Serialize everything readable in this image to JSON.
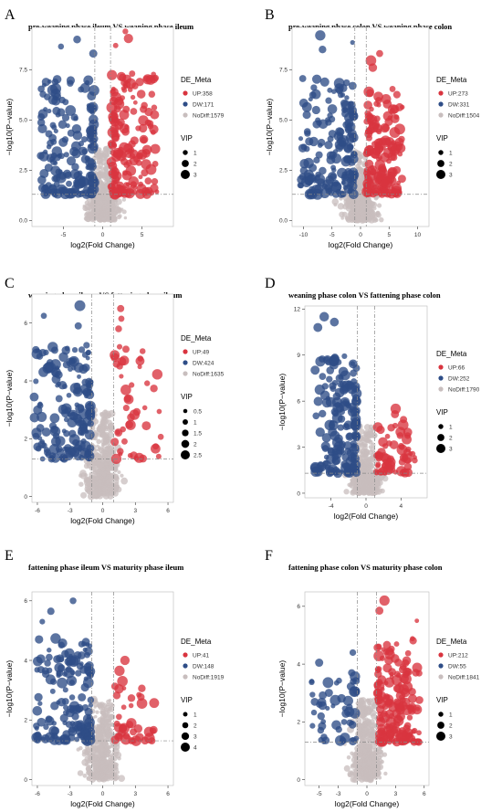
{
  "colors": {
    "up": "#d9343f",
    "down": "#2e4d87",
    "nodiff": "#c8bebe",
    "panel_bg": "#ffffff",
    "axis": "#333333",
    "threshold": "#888888"
  },
  "legend": {
    "title": "DE_Meta",
    "size_title": "VIP"
  },
  "chart_data": [
    {
      "letter": "A",
      "type": "scatter",
      "title": "pre-weaning phase ileum VS weaning phase ileum",
      "xlabel": "log2(Fold Change)",
      "ylabel": "−log10(P−value)",
      "xlim": [
        -9,
        9
      ],
      "ylim": [
        -0.3,
        9.6
      ],
      "xticks": [
        -5,
        0,
        5
      ],
      "yticks": [
        0.0,
        2.5,
        5.0,
        7.5
      ],
      "ytick_labels": [
        "0.0",
        "2.5",
        "5.0",
        "7.5"
      ],
      "xthr": [
        -1,
        1
      ],
      "ythr": 1.3,
      "groups": [
        {
          "key": "up",
          "label": "UP:358",
          "count": 358
        },
        {
          "key": "down",
          "label": "DW:171",
          "count": 171
        },
        {
          "key": "nodiff",
          "label": "NoDiff:1579",
          "count": 1579
        }
      ],
      "vip": [
        1,
        2,
        3
      ],
      "peak_up": 9.4,
      "peak_down": 9.0,
      "spread_up": 5.8,
      "spread_down": 6.8
    },
    {
      "letter": "B",
      "type": "scatter",
      "title": "pre-weaning phase colon VS weaning phase colon",
      "xlabel": "log2(Fold Change)",
      "ylabel": "−log10(P−value)",
      "xlim": [
        -12,
        12
      ],
      "ylim": [
        -0.3,
        9.6
      ],
      "xticks": [
        -10,
        -5,
        0,
        5,
        10
      ],
      "yticks": [
        0.0,
        2.5,
        5.0,
        7.5
      ],
      "ytick_labels": [
        "0.0",
        "2.5",
        "5.0",
        "7.5"
      ],
      "xthr": [
        -1,
        1
      ],
      "ythr": 1.3,
      "groups": [
        {
          "key": "up",
          "label": "UP:273",
          "count": 273
        },
        {
          "key": "down",
          "label": "DW:331",
          "count": 331
        },
        {
          "key": "nodiff",
          "label": "NoDiff:1504",
          "count": 1504
        }
      ],
      "vip": [
        1,
        2,
        3
      ],
      "peak_up": 8.3,
      "peak_down": 9.2,
      "spread_up": 6.5,
      "spread_down": 9.5
    },
    {
      "letter": "C",
      "type": "scatter",
      "title": "weaning phase ileum VS fattening phase ileum",
      "xlabel": "log2(Fold Change)",
      "ylabel": "−log10(P−value)",
      "xlim": [
        -6.5,
        6.5
      ],
      "ylim": [
        -0.2,
        7.0
      ],
      "xticks": [
        -6,
        -3,
        0,
        3,
        6
      ],
      "yticks": [
        0,
        2,
        4,
        6
      ],
      "ytick_labels": [
        "0",
        "2",
        "4",
        "6"
      ],
      "xthr": [
        -1,
        1
      ],
      "ythr": 1.3,
      "groups": [
        {
          "key": "up",
          "label": "UP:49",
          "count": 49
        },
        {
          "key": "down",
          "label": "DW:424",
          "count": 424
        },
        {
          "key": "nodiff",
          "label": "NoDiff:1635",
          "count": 1635
        }
      ],
      "vip": [
        0.5,
        1.0,
        1.5,
        2.0,
        2.5
      ],
      "peak_up": 6.5,
      "peak_down": 6.6,
      "spread_up": 4.3,
      "spread_down": 5.2
    },
    {
      "letter": "D",
      "type": "scatter",
      "title": "weaning phase colon VS fattening phase colon",
      "xlabel": "log2(Fold Change)",
      "ylabel": "−log10(P−value)",
      "xlim": [
        -7,
        7
      ],
      "ylim": [
        -0.3,
        12.2
      ],
      "xticks": [
        -4,
        0,
        4
      ],
      "yticks": [
        0,
        3,
        6,
        9,
        12
      ],
      "ytick_labels": [
        "0",
        "3",
        "6",
        "9",
        "12"
      ],
      "xthr": [
        -1,
        1
      ],
      "ythr": 1.3,
      "groups": [
        {
          "key": "up",
          "label": "UP:66",
          "count": 66
        },
        {
          "key": "down",
          "label": "DW:252",
          "count": 252
        },
        {
          "key": "nodiff",
          "label": "NoDiff:1790",
          "count": 1790
        }
      ],
      "vip": [
        1,
        2,
        3
      ],
      "peak_up": 5.5,
      "peak_down": 11.5,
      "spread_up": 4.5,
      "spread_down": 4.8
    },
    {
      "letter": "E",
      "type": "scatter",
      "title": "fattening phase ileum VS maturity phase ileum",
      "xlabel": "log2(Fold Change)",
      "ylabel": "−log10(P−value)",
      "xlim": [
        -6.5,
        6.5
      ],
      "ylim": [
        -0.2,
        6.3
      ],
      "xticks": [
        -6,
        -3,
        0,
        3,
        6
      ],
      "yticks": [
        0,
        2,
        4,
        6
      ],
      "ytick_labels": [
        "0",
        "2",
        "4",
        "6"
      ],
      "xthr": [
        -1,
        1
      ],
      "ythr": 1.3,
      "groups": [
        {
          "key": "up",
          "label": "UP:41",
          "count": 41
        },
        {
          "key": "down",
          "label": "DW:148",
          "count": 148
        },
        {
          "key": "nodiff",
          "label": "NoDiff:1919",
          "count": 1919
        }
      ],
      "vip": [
        1,
        2,
        3,
        4
      ],
      "peak_up": 4.0,
      "peak_down": 6.0,
      "spread_up": 3.8,
      "spread_down": 5.0
    },
    {
      "letter": "F",
      "type": "scatter",
      "title": "fattening phase colon VS maturity phase colon",
      "xlabel": "log2(Fold Change)",
      "ylabel": "−log10(P−value)",
      "xlim": [
        -6.5,
        6.5
      ],
      "ylim": [
        -0.2,
        6.5
      ],
      "xticks": [
        -5,
        -3,
        0,
        3,
        6
      ],
      "yticks": [
        0,
        2,
        4,
        6
      ],
      "ytick_labels": [
        "0",
        "2",
        "4",
        "6"
      ],
      "xthr": [
        -1,
        1
      ],
      "ythr": 1.3,
      "groups": [
        {
          "key": "up",
          "label": "UP:212",
          "count": 212
        },
        {
          "key": "down",
          "label": "DW:55",
          "count": 55
        },
        {
          "key": "nodiff",
          "label": "NoDiff:1841",
          "count": 1841
        }
      ],
      "vip": [
        1,
        2,
        3
      ],
      "peak_up": 6.2,
      "peak_down": 4.4,
      "spread_up": 4.4,
      "spread_down": 4.8
    }
  ]
}
